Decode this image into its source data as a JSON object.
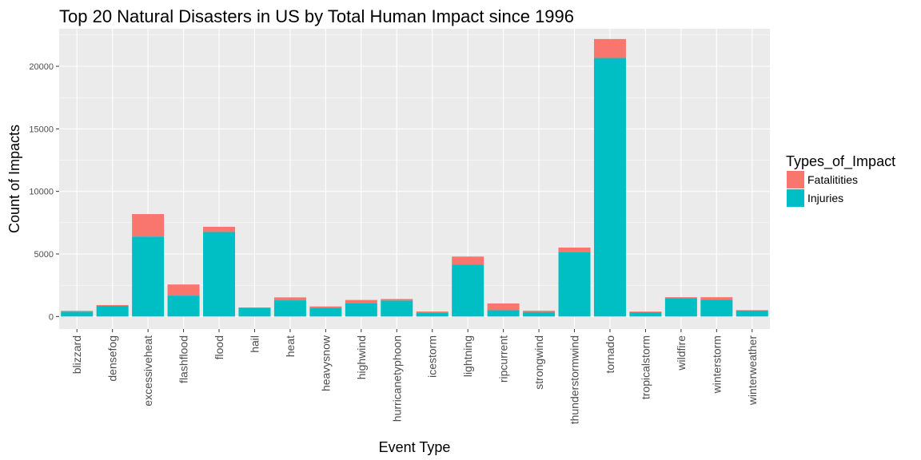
{
  "chart_data": {
    "type": "bar",
    "stacked": true,
    "title": "Top 20 Natural Disasters in US by Total Human Impact since 1996",
    "xlabel": "Event Type",
    "ylabel": "Count of Impacts",
    "ylim": [
      -1000,
      23000
    ],
    "yticks": [
      0,
      5000,
      10000,
      15000,
      20000
    ],
    "grid": true,
    "legend_position": "right",
    "legend_title": "Types_of_Impact",
    "categories": [
      "blizzard",
      "densefog",
      "excessiveheat",
      "flashflood",
      "flood",
      "hail",
      "heat",
      "heavysnow",
      "highwind",
      "hurricanetyphoon",
      "icestorm",
      "lightning",
      "ripcurrent",
      "strongwind",
      "thunderstormwind",
      "tornado",
      "tropicalstorm",
      "wildfire",
      "winterstorm",
      "winterweather"
    ],
    "series": [
      {
        "name": "Injuries",
        "color": "#00BFC4",
        "values": [
          385,
          855,
          6391,
          1674,
          6758,
          713,
          1292,
          698,
          1087,
          1275,
          318,
          4141,
          503,
          357,
          5130,
          20667,
          338,
          1456,
          1353,
          483
        ]
      },
      {
        "name": "Fatalitities",
        "color": "#F8766D",
        "values": [
          70,
          64,
          1797,
          887,
          414,
          7,
          237,
          107,
          235,
          125,
          82,
          651,
          542,
          109,
          379,
          1511,
          57,
          87,
          191,
          33
        ]
      }
    ]
  }
}
